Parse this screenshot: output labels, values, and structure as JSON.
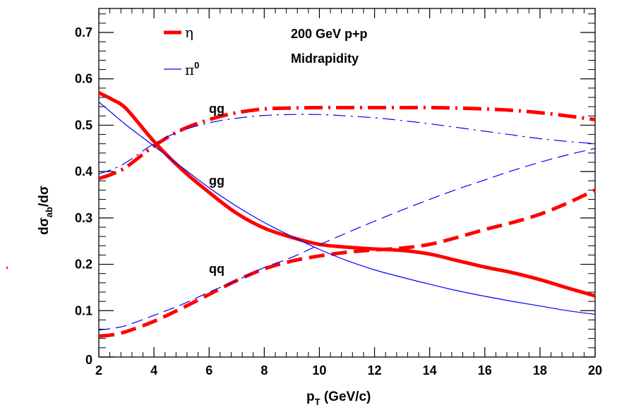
{
  "chart_data": {
    "type": "line",
    "title": "",
    "xlabel_main": "p",
    "xlabel_sub": "T",
    "xlabel_rest": " (GeV/c)",
    "ylabel_prefix": "dσ",
    "ylabel_sub": "ab",
    "ylabel_suffix": "/dσ",
    "xlim": [
      2,
      20
    ],
    "ylim": [
      0,
      0.75
    ],
    "xticks": [
      2,
      4,
      6,
      8,
      10,
      12,
      14,
      16,
      18,
      20
    ],
    "xtick_labels": [
      "2",
      "4",
      "6",
      "8",
      "10",
      "12",
      "14",
      "16",
      "18",
      "20"
    ],
    "yticks": [
      0,
      0.1,
      0.2,
      0.3,
      0.4,
      0.5,
      0.6,
      0.7
    ],
    "ytick_labels": [
      "0",
      "0.1",
      "0.2",
      "0.3",
      "0.4",
      "0.5",
      "0.6",
      "0.7"
    ],
    "grid": false,
    "annotations": {
      "header_line1": "200 GeV p+p",
      "header_line2": "Midrapidity",
      "qg": "qg",
      "gg": "gg",
      "qq": "qq"
    },
    "legend": {
      "eta": "η",
      "pi0_base": "π",
      "pi0_sup": "0"
    },
    "colors": {
      "eta": "#ff0000",
      "pi0": "#0000ff"
    },
    "series": [
      {
        "name": "η gg",
        "particle": "eta",
        "subprocess": "gg",
        "style": "solid",
        "x": [
          2,
          2.5,
          3,
          4,
          5,
          6,
          7,
          8,
          9,
          10,
          11,
          12,
          13,
          14,
          15,
          16,
          17,
          18,
          19,
          20
        ],
        "y": [
          0.57,
          0.555,
          0.535,
          0.465,
          0.405,
          0.355,
          0.31,
          0.278,
          0.258,
          0.243,
          0.237,
          0.233,
          0.23,
          0.222,
          0.208,
          0.194,
          0.182,
          0.167,
          0.149,
          0.132
        ]
      },
      {
        "name": "η qg",
        "particle": "eta",
        "subprocess": "qg",
        "style": "dashdot",
        "x": [
          2,
          2.5,
          3,
          4,
          5,
          6,
          7,
          8,
          9,
          10,
          11,
          12,
          13,
          14,
          15,
          16,
          17,
          18,
          19,
          20
        ],
        "y": [
          0.385,
          0.395,
          0.41,
          0.455,
          0.49,
          0.512,
          0.527,
          0.535,
          0.537,
          0.538,
          0.538,
          0.538,
          0.538,
          0.538,
          0.537,
          0.535,
          0.532,
          0.527,
          0.52,
          0.512
        ]
      },
      {
        "name": "η qq",
        "particle": "eta",
        "subprocess": "qq",
        "style": "dashed",
        "x": [
          2,
          2.5,
          3,
          4,
          5,
          6,
          7,
          8,
          9,
          10,
          11,
          12,
          13,
          14,
          15,
          16,
          17,
          18,
          19,
          20
        ],
        "y": [
          0.045,
          0.048,
          0.055,
          0.077,
          0.105,
          0.135,
          0.165,
          0.19,
          0.207,
          0.218,
          0.226,
          0.231,
          0.235,
          0.243,
          0.258,
          0.275,
          0.29,
          0.308,
          0.332,
          0.36
        ]
      },
      {
        "name": "π0 gg",
        "particle": "pi0",
        "subprocess": "gg",
        "style": "solid",
        "x": [
          2,
          2.5,
          3,
          4,
          5,
          6,
          7,
          8,
          9,
          10,
          11,
          12,
          13,
          14,
          15,
          16,
          17,
          18,
          19,
          20
        ],
        "y": [
          0.55,
          0.525,
          0.5,
          0.455,
          0.41,
          0.365,
          0.325,
          0.29,
          0.26,
          0.232,
          0.208,
          0.188,
          0.172,
          0.157,
          0.143,
          0.131,
          0.12,
          0.11,
          0.1,
          0.092
        ]
      },
      {
        "name": "π0 qg",
        "particle": "pi0",
        "subprocess": "qg",
        "style": "dashdot",
        "x": [
          2,
          2.5,
          3,
          4,
          5,
          6,
          7,
          8,
          9,
          10,
          11,
          12,
          13,
          14,
          15,
          16,
          17,
          18,
          19,
          20
        ],
        "y": [
          0.395,
          0.405,
          0.42,
          0.46,
          0.488,
          0.505,
          0.515,
          0.521,
          0.523,
          0.523,
          0.52,
          0.516,
          0.51,
          0.503,
          0.495,
          0.487,
          0.479,
          0.471,
          0.465,
          0.46
        ]
      },
      {
        "name": "π0 qq",
        "particle": "pi0",
        "subprocess": "qq",
        "style": "dashed",
        "x": [
          2,
          2.5,
          3,
          4,
          5,
          6,
          7,
          8,
          9,
          10,
          11,
          12,
          13,
          14,
          15,
          16,
          17,
          18,
          19,
          20
        ],
        "y": [
          0.058,
          0.062,
          0.068,
          0.09,
          0.113,
          0.14,
          0.165,
          0.193,
          0.215,
          0.242,
          0.268,
          0.293,
          0.317,
          0.34,
          0.362,
          0.382,
          0.402,
          0.42,
          0.436,
          0.45
        ]
      }
    ]
  }
}
